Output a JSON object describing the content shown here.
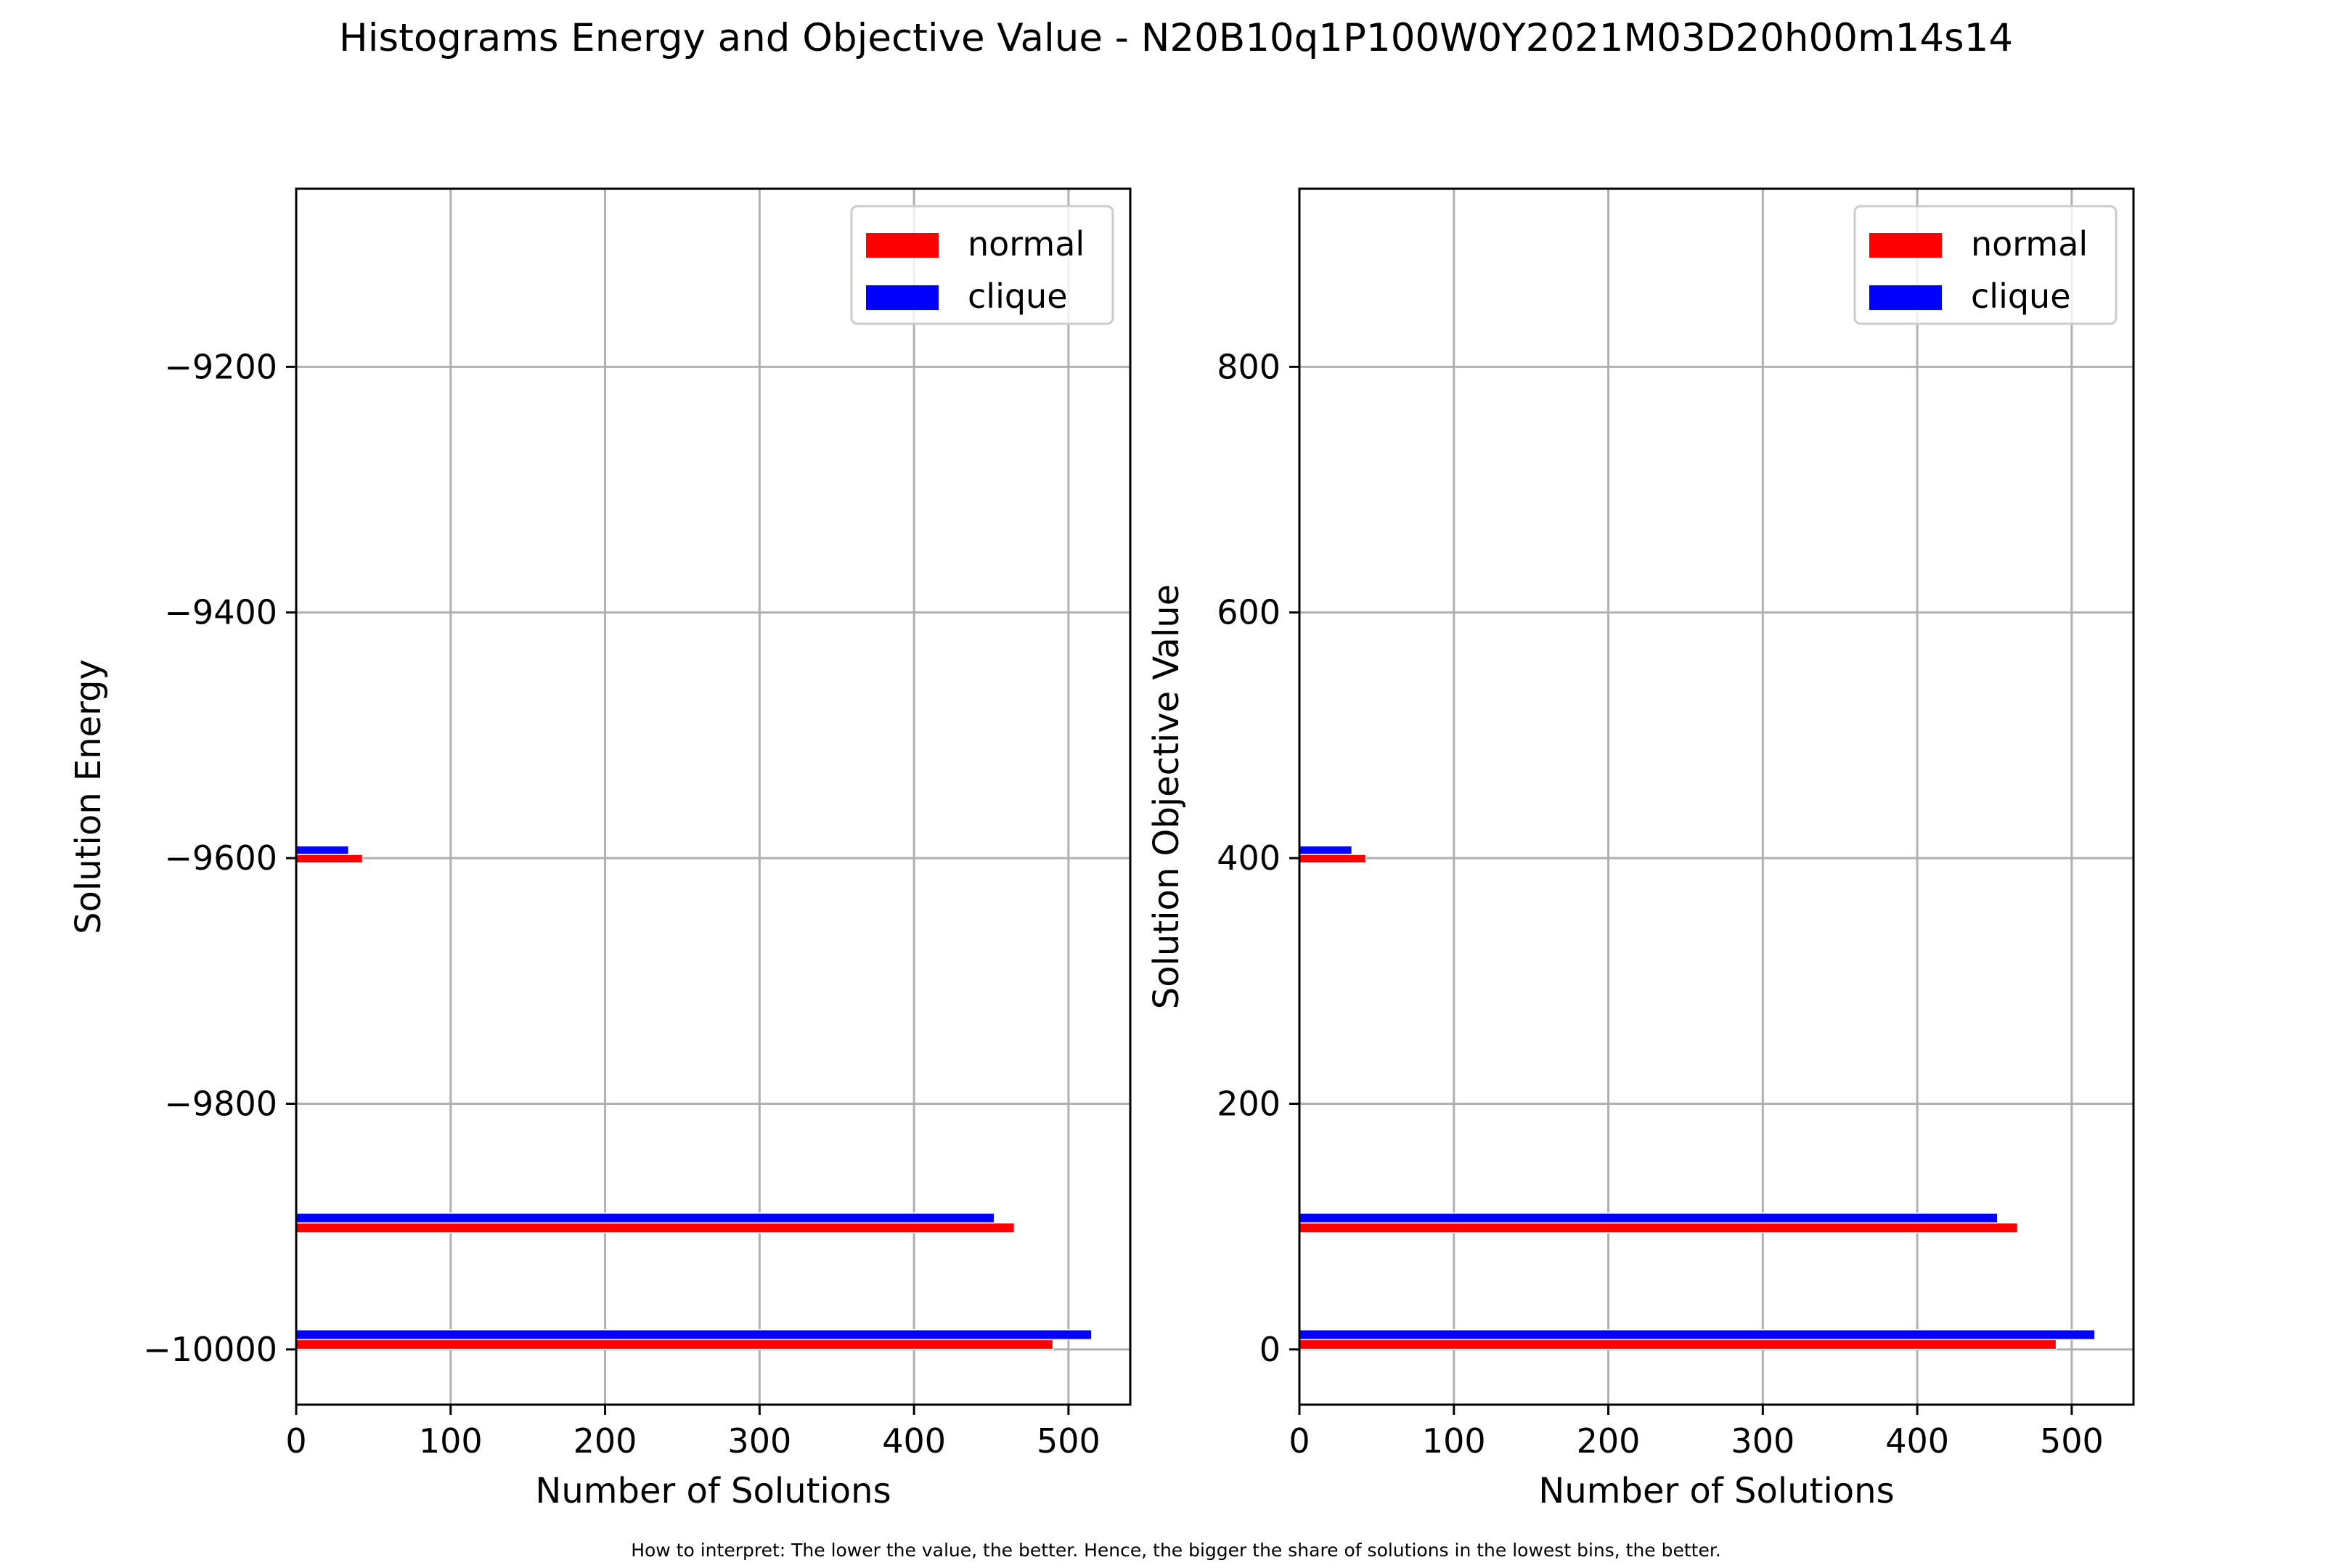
{
  "figure": {
    "title": "Histograms Energy and Objective Value - N20B10q1P100W0Y2021M03D20h00m14s14",
    "footnote": "How to interpret: The lower the value, the better. Hence, the bigger the share of solutions in the lowest bins, the better."
  },
  "colors": {
    "normal": "#ff0000",
    "clique": "#0000ff",
    "grid": "#b0b0b0"
  },
  "chart_data": [
    {
      "type": "bar",
      "orientation": "horizontal",
      "xlabel": "Number of Solutions",
      "ylabel": "Solution Energy",
      "xlim": [
        0,
        540
      ],
      "ylim": [
        -10045,
        -9055
      ],
      "xticks": [
        0,
        100,
        200,
        300,
        400,
        500
      ],
      "xtick_labels": [
        "0",
        "100",
        "200",
        "300",
        "400",
        "500"
      ],
      "yticks": [
        -10000,
        -9800,
        -9600,
        -9400,
        -9200
      ],
      "ytick_labels": [
        "−10000",
        "−9800",
        "−9600",
        "−9400",
        "−9200"
      ],
      "grid": true,
      "legend": "top-right",
      "series": [
        {
          "name": "normal",
          "color": "#ff0000",
          "bars": [
            {
              "bin_start": -10000,
              "bin_end": -9992,
              "count": 490
            },
            {
              "bin_start": -9905,
              "bin_end": -9897,
              "count": 465
            },
            {
              "bin_start": -9604,
              "bin_end": -9597,
              "count": 43
            },
            {
              "bin_start": -9111,
              "bin_end": -9105,
              "count": 1
            }
          ]
        },
        {
          "name": "clique",
          "color": "#0000ff",
          "bars": [
            {
              "bin_start": -9992,
              "bin_end": -9984,
              "count": 515
            },
            {
              "bin_start": -9897,
              "bin_end": -9889,
              "count": 452
            },
            {
              "bin_start": -9597,
              "bin_end": -9590,
              "count": 34
            }
          ]
        }
      ]
    },
    {
      "type": "bar",
      "orientation": "horizontal",
      "xlabel": "Number of Solutions",
      "ylabel": "Solution Objective Value",
      "xlim": [
        0,
        540
      ],
      "ylim": [
        -45,
        945
      ],
      "xticks": [
        0,
        100,
        200,
        300,
        400,
        500
      ],
      "xtick_labels": [
        "0",
        "100",
        "200",
        "300",
        "400",
        "500"
      ],
      "yticks": [
        0,
        200,
        400,
        600,
        800
      ],
      "ytick_labels": [
        "0",
        "200",
        "400",
        "600",
        "800"
      ],
      "grid": true,
      "legend": "top-right",
      "series": [
        {
          "name": "normal",
          "color": "#ff0000",
          "bars": [
            {
              "bin_start": 0,
              "bin_end": 8,
              "count": 490
            },
            {
              "bin_start": 95,
              "bin_end": 103,
              "count": 465
            },
            {
              "bin_start": 396,
              "bin_end": 403,
              "count": 43
            },
            {
              "bin_start": 889,
              "bin_end": 895,
              "count": 1
            }
          ]
        },
        {
          "name": "clique",
          "color": "#0000ff",
          "bars": [
            {
              "bin_start": 8,
              "bin_end": 16,
              "count": 515
            },
            {
              "bin_start": 103,
              "bin_end": 111,
              "count": 452
            },
            {
              "bin_start": 403,
              "bin_end": 410,
              "count": 34
            }
          ]
        }
      ]
    }
  ]
}
